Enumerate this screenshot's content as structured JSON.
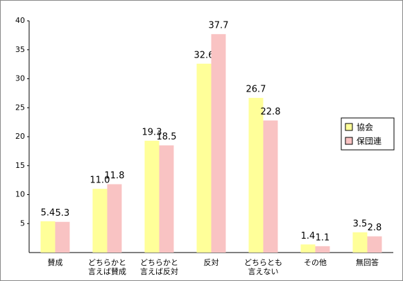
{
  "chart_data": {
    "type": "bar",
    "categories": [
      "賛成",
      "どちらかと\n言えば賛成",
      "どちらかと\n言えば反対",
      "反対",
      "どちらとも\n言えない",
      "その他",
      "無回答"
    ],
    "series": [
      {
        "name": "協会",
        "color": "#ffff99",
        "values": [
          5.4,
          11.0,
          19.3,
          32.6,
          26.7,
          1.4,
          3.5
        ],
        "value_labels": [
          "5.4",
          "11.0",
          "19.3",
          "32.6",
          "26.7",
          "1.4",
          "3.5"
        ]
      },
      {
        "name": "保団連",
        "color": "#f9c3c3",
        "values": [
          5.3,
          11.8,
          18.5,
          37.7,
          22.8,
          1.1,
          2.8
        ],
        "value_labels": [
          "5.3",
          "11.8",
          "18.5",
          "37.7",
          "22.8",
          "1.1",
          "2.8"
        ]
      }
    ],
    "ylim": [
      0,
      40
    ],
    "yticks": [
      5,
      10,
      15,
      20,
      25,
      30,
      35,
      40
    ],
    "grid": false,
    "legend": "right"
  }
}
